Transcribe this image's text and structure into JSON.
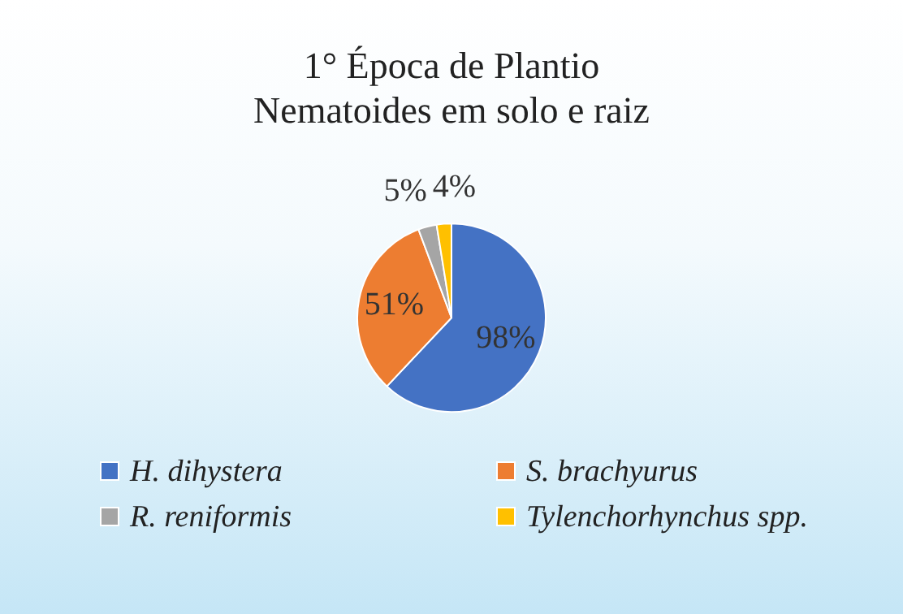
{
  "chart_data": {
    "type": "pie",
    "title": "1° Época de Plantio\nNematoides em solo e raiz",
    "categories": [
      "H. dihystera",
      "S. brachyurus",
      "R. reniformis",
      "Tylenchorhynchus spp."
    ],
    "values": [
      98,
      51,
      5,
      4
    ],
    "colors": [
      "#4472c4",
      "#ed7d31",
      "#a5a5a5",
      "#ffc000"
    ],
    "value_labels": [
      "98%",
      "51%",
      "5%",
      "4%"
    ],
    "legend": "bottom"
  }
}
